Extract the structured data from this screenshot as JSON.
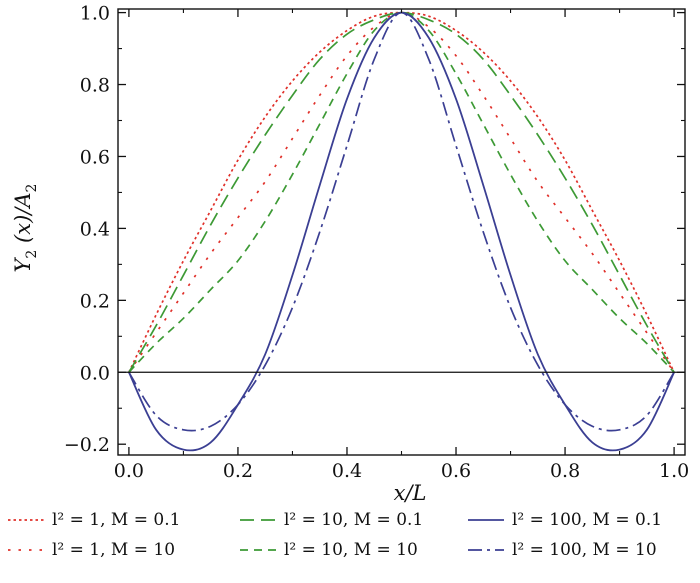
{
  "chart_data": {
    "type": "line",
    "xlabel": "x/L",
    "ylabel": "Y2(x)/A2",
    "ylabel_parts": {
      "main": "Y",
      "sub": "2",
      "mid": " (x)/A",
      "sub2": "2"
    },
    "xlim": [
      -0.02,
      1.02
    ],
    "ylim": [
      -0.23,
      1.01
    ],
    "xticks": [
      "0.0",
      "0.2",
      "0.4",
      "0.6",
      "0.8",
      "1.0"
    ],
    "yticks": [
      "−0.2",
      "0.0",
      "0.2",
      "0.4",
      "0.6",
      "0.8",
      "1.0"
    ],
    "x": [
      0.0,
      0.05,
      0.1,
      0.15,
      0.2,
      0.25,
      0.3,
      0.35,
      0.4,
      0.45,
      0.5,
      0.55,
      0.6,
      0.65,
      0.7,
      0.75,
      0.8,
      0.85,
      0.9,
      0.95,
      1.0
    ],
    "series": [
      {
        "name": "l² = 1, M = 0.1",
        "color": "#e0302a",
        "dash": "dotted-fine",
        "values": [
          0.0,
          0.16,
          0.31,
          0.45,
          0.59,
          0.71,
          0.81,
          0.89,
          0.95,
          0.99,
          1.0,
          0.99,
          0.95,
          0.89,
          0.81,
          0.71,
          0.59,
          0.45,
          0.31,
          0.16,
          0.0
        ]
      },
      {
        "name": "l² = 1, M = 10",
        "color": "#e0302a",
        "dash": "dotted-wide",
        "values": [
          0.0,
          0.11,
          0.22,
          0.33,
          0.43,
          0.53,
          0.65,
          0.77,
          0.88,
          0.96,
          1.0,
          0.96,
          0.88,
          0.77,
          0.65,
          0.53,
          0.43,
          0.33,
          0.22,
          0.11,
          0.0
        ]
      },
      {
        "name": "l² = 10, M = 0.1",
        "color": "#3d9a35",
        "dash": "long-dash",
        "values": [
          0.0,
          0.13,
          0.27,
          0.41,
          0.54,
          0.66,
          0.77,
          0.87,
          0.94,
          0.98,
          1.0,
          0.98,
          0.94,
          0.87,
          0.77,
          0.66,
          0.54,
          0.41,
          0.27,
          0.13,
          0.0
        ]
      },
      {
        "name": "l² = 10, M = 10",
        "color": "#3d9a35",
        "dash": "short-dash",
        "values": [
          0.0,
          0.08,
          0.15,
          0.23,
          0.31,
          0.42,
          0.55,
          0.69,
          0.83,
          0.95,
          1.0,
          0.95,
          0.83,
          0.69,
          0.55,
          0.42,
          0.31,
          0.23,
          0.15,
          0.08,
          0.0
        ]
      },
      {
        "name": "l² = 100, M = 0.1",
        "color": "#3b3f93",
        "dash": "solid",
        "values": [
          0.0,
          -0.16,
          -0.215,
          -0.195,
          -0.09,
          0.05,
          0.27,
          0.52,
          0.76,
          0.93,
          1.0,
          0.93,
          0.76,
          0.52,
          0.27,
          0.05,
          -0.09,
          -0.195,
          -0.215,
          -0.16,
          0.0
        ]
      },
      {
        "name": "l² = 100, M = 10",
        "color": "#3b3f93",
        "dash": "dash-dot",
        "values": [
          0.0,
          -0.12,
          -0.16,
          -0.15,
          -0.09,
          0.02,
          0.18,
          0.39,
          0.63,
          0.87,
          1.0,
          0.87,
          0.63,
          0.39,
          0.18,
          0.02,
          -0.09,
          -0.15,
          -0.16,
          -0.12,
          0.0
        ]
      }
    ],
    "zero_line": true,
    "legend_placement": "bottom",
    "grid": false
  }
}
